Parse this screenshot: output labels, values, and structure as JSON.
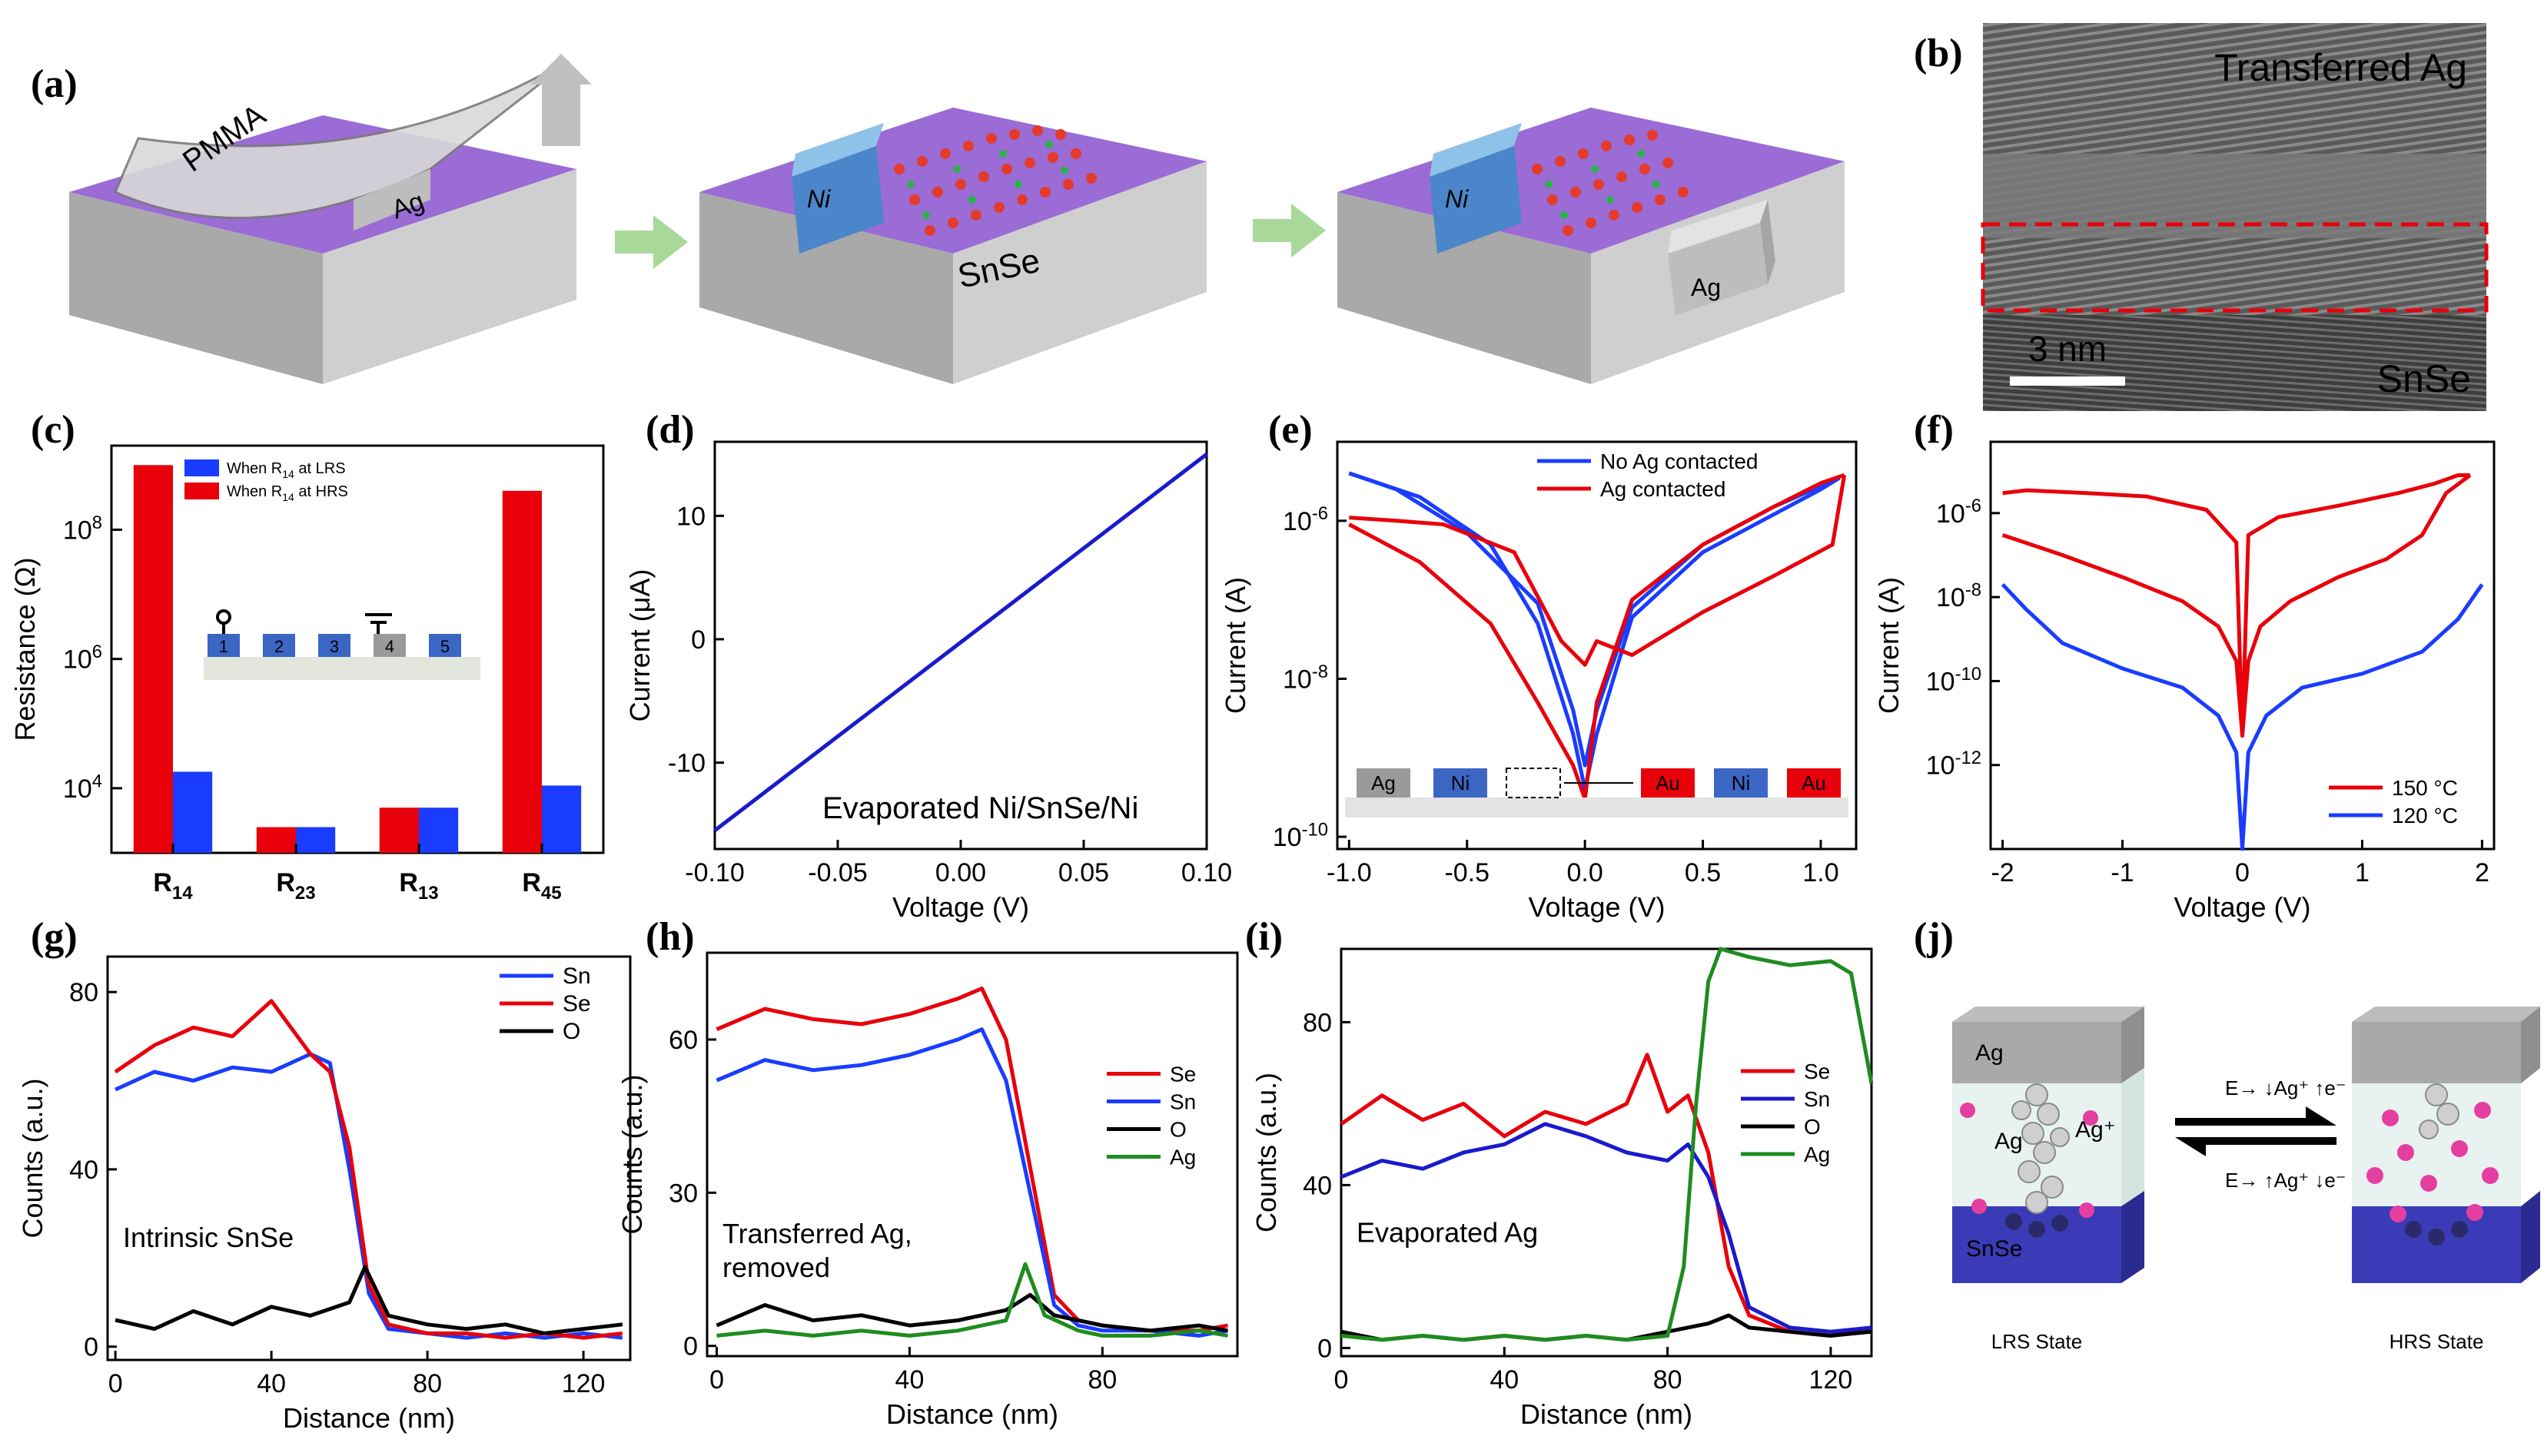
{
  "labels": {
    "a": "(a)",
    "b": "(b)",
    "c": "(c)",
    "d": "(d)",
    "e": "(e)",
    "f": "(f)",
    "g": "(g)",
    "h": "(h)",
    "i": "(i)",
    "j": "(j)"
  },
  "panel_a": {
    "pmma": "PMMA",
    "ag": "Ag",
    "ni": "Ni",
    "snse": "SnSe",
    "colors": {
      "substrate_top": "#9b6bd6",
      "substrate_side": "#b8b8b8",
      "ni": "#6aa7d8",
      "ag": "#c9c9c9",
      "arrow": "#a8d89a"
    }
  },
  "panel_b": {
    "top_label": "Transferred Ag",
    "scale": "3 nm",
    "bottom_label": "SnSe"
  },
  "panel_j": {
    "ag": "Ag",
    "ag_ion": "Ag⁺",
    "snse": "SnSe",
    "lrs": "LRS State",
    "hrs": "HRS State",
    "fwd": "E→ ↓Ag⁺ ↑e⁻",
    "rev": "E→ ↑Ag⁺ ↓e⁻"
  },
  "chart_data": [
    {
      "id": "c",
      "type": "bar",
      "scale": "log",
      "ylabel": "Resistance (Ω)",
      "categories": [
        "R14",
        "R23",
        "R13",
        "R45"
      ],
      "yticks": [
        "10^4",
        "10^6",
        "10^8"
      ],
      "ylim": [
        1000,
        2000000000
      ],
      "inset_pads": [
        "1",
        "2",
        "3",
        "4",
        "5"
      ],
      "series": [
        {
          "name": "When R14 at HRS",
          "color": "#e8000b",
          "values": [
            1000000000,
            2500,
            5000,
            400000000
          ]
        },
        {
          "name": "When R14 at LRS",
          "color": "#1a3cff",
          "values": [
            18000,
            2500,
            5000,
            11000
          ]
        }
      ]
    },
    {
      "id": "d",
      "type": "line",
      "xlabel": "Voltage (V)",
      "ylabel": "Current (μA)",
      "xlim": [
        -0.1,
        0.1
      ],
      "ylim": [
        -17,
        16
      ],
      "xticks": [
        -0.1,
        -0.05,
        0.0,
        0.05,
        0.1
      ],
      "xtick_labels": [
        "-0.10",
        "-0.05",
        "0.00",
        "0.05",
        "0.10"
      ],
      "yticks": [
        -10,
        0,
        10
      ],
      "annotation": "Evaporated Ni/SnSe/Ni",
      "series": [
        {
          "name": "Ni/SnSe/Ni",
          "color": "#1a1acc",
          "x": [
            -0.1,
            0.1
          ],
          "y": [
            -15.5,
            15
          ]
        }
      ]
    },
    {
      "id": "e",
      "type": "line",
      "scale": "log",
      "xlabel": "Voltage (V)",
      "ylabel": "Current (A)",
      "xlim": [
        -1.05,
        1.15
      ],
      "ylim": [
        7e-11,
        1e-05
      ],
      "xticks": [
        -1.0,
        -0.5,
        0.0,
        0.5,
        1.0
      ],
      "xtick_labels": [
        "-1.0",
        "-0.5",
        "0.0",
        "0.5",
        "1.0"
      ],
      "yticks": [
        "10^-10",
        "10^-8",
        "10^-6"
      ],
      "legend": [
        "No Ag contacted",
        "Ag contacted"
      ],
      "inset_pads": [
        "Ag",
        "Ni",
        "Au",
        "Ni",
        "Au"
      ],
      "series": [
        {
          "name": "No Ag contacted",
          "color": "#1a3cff",
          "x": [
            -1.0,
            -0.7,
            -0.4,
            -0.2,
            -0.05,
            0.0,
            0.05,
            0.2,
            0.5,
            0.8,
            1.0,
            1.08
          ],
          "y": [
            4e-06,
            2e-06,
            5e-07,
            5e-08,
            2e-09,
            4e-10,
            2e-09,
            6e-08,
            4e-07,
            1.2e-06,
            2.5e-06,
            3.5e-06
          ]
        },
        {
          "name": "No Ag contacted (return)",
          "color": "#1a3cff",
          "x": [
            1.08,
            0.8,
            0.5,
            0.2,
            0.05,
            0.0,
            -0.05,
            -0.2,
            -0.5,
            -0.8,
            -1.0
          ],
          "y": [
            3.5e-06,
            1.5e-06,
            5e-07,
            8e-08,
            4e-09,
            8e-10,
            4e-09,
            9e-08,
            7e-07,
            2.5e-06,
            4e-06
          ]
        },
        {
          "name": "Ag contacted",
          "color": "#e8000b",
          "x": [
            -1.0,
            -0.7,
            -0.4,
            -0.2,
            -0.05,
            0.0,
            0.05,
            0.2,
            0.5,
            0.8,
            1.0,
            1.1
          ],
          "y": [
            9e-07,
            3e-07,
            5e-08,
            5e-09,
            8e-10,
            3e-10,
            5e-09,
            1e-07,
            5e-07,
            1.5e-06,
            3e-06,
            3.8e-06
          ]
        },
        {
          "name": "Ag contacted (return)",
          "color": "#e8000b",
          "x": [
            1.1,
            1.05,
            0.8,
            0.5,
            0.2,
            0.05,
            0.0,
            -0.1,
            -0.3,
            -0.6,
            -0.8,
            -1.0
          ],
          "y": [
            3.8e-06,
            5e-07,
            2e-07,
            7e-08,
            2e-08,
            3e-08,
            1.5e-08,
            3e-08,
            4e-07,
            9e-07,
            1e-06,
            1.1e-06
          ]
        }
      ]
    },
    {
      "id": "f",
      "type": "line",
      "scale": "log",
      "xlabel": "Voltage (V)",
      "ylabel": "Current (A)",
      "xlim": [
        -2.1,
        2.1
      ],
      "ylim": [
        1e-14,
        5e-05
      ],
      "xticks": [
        -2,
        -1,
        0,
        1,
        2
      ],
      "xtick_labels": [
        "-2",
        "-1",
        "0",
        "1",
        "2"
      ],
      "yticks": [
        "10^-12",
        "10^-10",
        "10^-8",
        "10^-6"
      ],
      "legend": [
        "150 °C",
        "120 °C"
      ],
      "series": [
        {
          "name": "150 °C",
          "color": "#e8000b",
          "x": [
            -2.0,
            -1.5,
            -1.0,
            -0.5,
            -0.2,
            -0.05,
            0.0,
            0.05,
            0.3,
            0.8,
            1.3,
            1.6,
            1.8,
            1.9
          ],
          "y": [
            3e-07,
            1e-07,
            3e-08,
            8e-09,
            2e-09,
            3e-10,
            5e-12,
            3e-07,
            8e-07,
            1.5e-06,
            3e-06,
            5e-06,
            8e-06,
            8e-06
          ]
        },
        {
          "name": "150 °C (return)",
          "color": "#e8000b",
          "x": [
            1.9,
            1.7,
            1.5,
            1.2,
            0.8,
            0.4,
            0.15,
            0.05,
            0.0,
            -0.05,
            -0.3,
            -0.8,
            -1.3,
            -1.8,
            -2.0
          ],
          "y": [
            8e-06,
            3e-06,
            3e-07,
            8e-08,
            3e-08,
            8e-09,
            2e-09,
            3e-10,
            5e-12,
            2e-07,
            1.2e-06,
            2.5e-06,
            3e-06,
            3.5e-06,
            3e-06
          ]
        },
        {
          "name": "120 °C",
          "color": "#1a3cff",
          "x": [
            -2.0,
            -1.8,
            -1.5,
            -1.0,
            -0.5,
            -0.2,
            -0.05,
            0.0,
            0.05,
            0.2,
            0.5,
            1.0,
            1.5,
            1.8,
            2.0
          ],
          "y": [
            2e-08,
            5e-09,
            8e-10,
            2e-10,
            7e-11,
            1.5e-11,
            2e-12,
            1e-14,
            2e-12,
            1.5e-11,
            7e-11,
            1.5e-10,
            5e-10,
            3e-09,
            2e-08
          ]
        }
      ]
    },
    {
      "id": "g",
      "type": "line",
      "xlabel": "Distance (nm)",
      "ylabel": "Counts (a.u.)",
      "xlim": [
        -2,
        132
      ],
      "ylim": [
        -3,
        88
      ],
      "xticks": [
        0,
        40,
        80,
        120
      ],
      "xtick_labels": [
        "0",
        "40",
        "80",
        "120"
      ],
      "yticks": [
        0,
        40,
        80
      ],
      "annotation": "Intrinsic SnSe",
      "legend": [
        "Sn",
        "Se",
        "O"
      ],
      "series": [
        {
          "name": "Sn",
          "color": "#1a3cff",
          "x": [
            0,
            10,
            20,
            30,
            40,
            50,
            55,
            60,
            65,
            70,
            80,
            90,
            100,
            110,
            120,
            130
          ],
          "y": [
            58,
            62,
            60,
            63,
            62,
            66,
            64,
            40,
            12,
            4,
            3,
            2,
            3,
            2,
            3,
            2
          ]
        },
        {
          "name": "Se",
          "color": "#e8000b",
          "x": [
            0,
            10,
            20,
            30,
            40,
            50,
            55,
            60,
            65,
            70,
            80,
            90,
            100,
            110,
            120,
            130
          ],
          "y": [
            62,
            68,
            72,
            70,
            78,
            66,
            62,
            45,
            14,
            5,
            3,
            3,
            2,
            3,
            2,
            3
          ]
        },
        {
          "name": "O",
          "color": "#000000",
          "x": [
            0,
            10,
            20,
            30,
            40,
            50,
            60,
            64,
            70,
            80,
            90,
            100,
            110,
            120,
            130
          ],
          "y": [
            6,
            4,
            8,
            5,
            9,
            7,
            10,
            18,
            7,
            5,
            4,
            5,
            3,
            4,
            5
          ]
        }
      ]
    },
    {
      "id": "h",
      "type": "line",
      "xlabel": "Distance (nm)",
      "ylabel": "Counts (a.u.)",
      "xlim": [
        -2,
        108
      ],
      "ylim": [
        -2,
        77
      ],
      "xticks": [
        0,
        40,
        80
      ],
      "xtick_labels": [
        "0",
        "40",
        "80"
      ],
      "yticks": [
        0,
        30,
        60
      ],
      "annotation": "Transferred Ag, removed",
      "legend": [
        "Se",
        "Sn",
        "O",
        "Ag"
      ],
      "series": [
        {
          "name": "Se",
          "color": "#e8000b",
          "x": [
            0,
            10,
            20,
            30,
            40,
            50,
            55,
            60,
            65,
            70,
            75,
            80,
            90,
            100,
            106
          ],
          "y": [
            62,
            66,
            64,
            63,
            65,
            68,
            70,
            60,
            35,
            10,
            5,
            4,
            3,
            3,
            4
          ]
        },
        {
          "name": "Sn",
          "color": "#1a3cff",
          "x": [
            0,
            10,
            20,
            30,
            40,
            50,
            55,
            60,
            65,
            70,
            75,
            80,
            90,
            100,
            106
          ],
          "y": [
            52,
            56,
            54,
            55,
            57,
            60,
            62,
            52,
            30,
            8,
            4,
            3,
            3,
            2,
            3
          ]
        },
        {
          "name": "O",
          "color": "#000000",
          "x": [
            0,
            10,
            20,
            30,
            40,
            50,
            60,
            65,
            70,
            80,
            90,
            100,
            106
          ],
          "y": [
            4,
            8,
            5,
            6,
            4,
            5,
            7,
            10,
            6,
            4,
            3,
            4,
            3
          ]
        },
        {
          "name": "Ag",
          "color": "#1e8c1e",
          "x": [
            0,
            10,
            20,
            30,
            40,
            50,
            60,
            64,
            68,
            75,
            80,
            90,
            100,
            106
          ],
          "y": [
            2,
            3,
            2,
            3,
            2,
            3,
            5,
            16,
            6,
            3,
            2,
            2,
            3,
            2
          ]
        }
      ]
    },
    {
      "id": "i",
      "type": "line",
      "xlabel": "Distance (nm)",
      "ylabel": "Counts (a.u.)",
      "xlim": [
        0,
        130
      ],
      "ylim": [
        -2,
        98
      ],
      "xticks": [
        0,
        40,
        80,
        120
      ],
      "xtick_labels": [
        "0",
        "40",
        "80",
        "120"
      ],
      "yticks": [
        0,
        40,
        80
      ],
      "annotation": "Evaporated Ag",
      "legend": [
        "Se",
        "Sn",
        "O",
        "Ag"
      ],
      "series": [
        {
          "name": "Se",
          "color": "#e8000b",
          "x": [
            0,
            10,
            20,
            30,
            40,
            50,
            60,
            70,
            75,
            80,
            85,
            90,
            95,
            100,
            110,
            120,
            130
          ],
          "y": [
            55,
            62,
            56,
            60,
            52,
            58,
            55,
            60,
            72,
            58,
            62,
            48,
            20,
            8,
            4,
            3,
            5
          ]
        },
        {
          "name": "Sn",
          "color": "#1a1acc",
          "x": [
            0,
            10,
            20,
            30,
            40,
            50,
            60,
            70,
            80,
            85,
            90,
            95,
            100,
            110,
            120,
            130
          ],
          "y": [
            42,
            46,
            44,
            48,
            50,
            55,
            52,
            48,
            46,
            50,
            42,
            28,
            10,
            5,
            4,
            5
          ]
        },
        {
          "name": "O",
          "color": "#000000",
          "x": [
            0,
            10,
            20,
            30,
            40,
            50,
            60,
            70,
            80,
            90,
            95,
            100,
            110,
            120,
            130
          ],
          "y": [
            4,
            2,
            3,
            2,
            3,
            2,
            3,
            2,
            4,
            6,
            8,
            5,
            4,
            3,
            4
          ]
        },
        {
          "name": "Ag",
          "color": "#1e8c1e",
          "x": [
            0,
            10,
            20,
            30,
            40,
            50,
            60,
            70,
            80,
            84,
            87,
            90,
            93,
            100,
            110,
            120,
            125,
            130
          ],
          "y": [
            3,
            2,
            3,
            2,
            3,
            2,
            3,
            2,
            3,
            20,
            60,
            90,
            98,
            96,
            94,
            95,
            92,
            65
          ]
        }
      ]
    }
  ]
}
